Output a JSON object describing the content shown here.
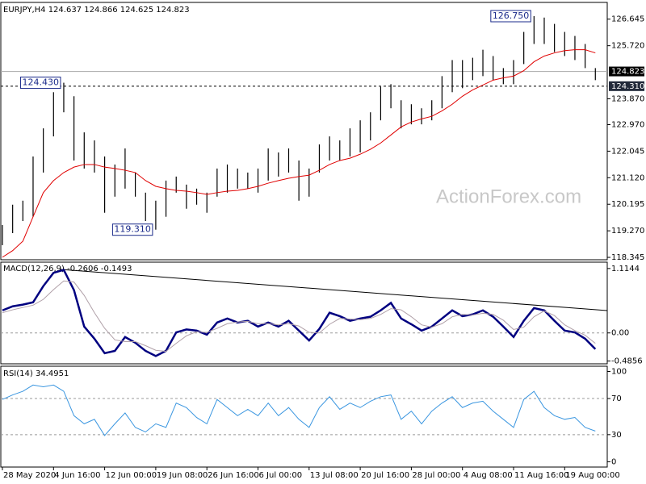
{
  "watermark": "ActionForex.com",
  "chart_data": [
    {
      "type": "range",
      "title": "EURJPY,H4  124.637 124.866 124.625 124.823",
      "bar_color": "#000000",
      "high": [
        119.47,
        120.18,
        120.32,
        121.86,
        122.84,
        124.1,
        124.43,
        123.96,
        122.7,
        122.42,
        121.86,
        121.58,
        122.14,
        121.3,
        120.6,
        120.32,
        121.02,
        121.16,
        120.88,
        120.74,
        120.6,
        121.44,
        121.58,
        121.44,
        121.3,
        121.44,
        122.14,
        122.0,
        122.14,
        121.72,
        121.44,
        122.28,
        122.56,
        122.42,
        122.84,
        123.12,
        123.4,
        124.29,
        124.38,
        123.82,
        123.68,
        123.54,
        123.82,
        124.66,
        125.22,
        125.22,
        125.3,
        125.58,
        125.36,
        124.94,
        125.22,
        126.2,
        126.75,
        126.7,
        126.48,
        126.2,
        126.06,
        125.78,
        124.94
      ],
      "low": [
        118.77,
        119.19,
        119.61,
        119.76,
        121.3,
        122.56,
        123.4,
        121.72,
        121.44,
        121.3,
        119.9,
        120.46,
        120.74,
        120.46,
        119.61,
        119.31,
        119.76,
        120.6,
        120.04,
        120.18,
        119.9,
        120.46,
        120.6,
        120.74,
        120.74,
        120.6,
        121.02,
        121.16,
        121.3,
        120.32,
        120.46,
        121.3,
        121.72,
        121.72,
        121.86,
        122.0,
        122.42,
        123.12,
        123.54,
        122.84,
        122.98,
        122.98,
        123.12,
        123.54,
        124.1,
        124.24,
        124.52,
        124.66,
        124.52,
        124.38,
        124.38,
        125.08,
        125.78,
        125.78,
        125.5,
        125.36,
        125.22,
        124.94,
        124.52
      ],
      "moving_average": {
        "color": "#e00000",
        "values": [
          118.35,
          118.58,
          118.91,
          119.76,
          120.6,
          121.02,
          121.3,
          121.49,
          121.58,
          121.58,
          121.49,
          121.44,
          121.38,
          121.3,
          121.02,
          120.82,
          120.74,
          120.68,
          120.65,
          120.6,
          120.54,
          120.6,
          120.65,
          120.68,
          120.74,
          120.82,
          120.93,
          121.02,
          121.1,
          121.16,
          121.21,
          121.38,
          121.58,
          121.72,
          121.8,
          121.94,
          122.11,
          122.33,
          122.61,
          122.89,
          123.06,
          123.17,
          123.26,
          123.45,
          123.68,
          123.96,
          124.18,
          124.35,
          124.52,
          124.6,
          124.66,
          124.85,
          125.16,
          125.36,
          125.47,
          125.55,
          125.58,
          125.58,
          125.47
        ]
      },
      "ylim": [
        118.29,
        127.2
      ],
      "yticks": [
        126.645,
        {
          "value": 125.72,
          "label": "125.720"
        },
        {
          "value": 123.87,
          "label": "123.870"
        },
        {
          "value": 122.97,
          "label": "122.970"
        },
        122.045,
        {
          "value": 121.12,
          "label": "121.120"
        },
        120.195,
        {
          "value": 119.27,
          "label": "119.270"
        },
        118.345
      ],
      "price_lines": [
        {
          "value": 124.823,
          "line_color": "#a8a8a8",
          "box_color": "#000000",
          "dashed": false
        },
        {
          "value": 124.31,
          "label": "124.310",
          "line_color": "#000000",
          "box_color": "#222a3a",
          "dashed": true
        }
      ],
      "annotations": [
        {
          "value": 126.75,
          "label": "126.750"
        },
        {
          "value": 124.43,
          "label": "124.430"
        },
        {
          "value": 119.31,
          "label": "119.310"
        }
      ]
    },
    {
      "type": "line",
      "title": "MACD(12,26,9) -0.2606 -0.1493",
      "series": [
        {
          "color": "#000080",
          "values": [
            0.39,
            0.46,
            0.49,
            0.53,
            0.81,
            1.04,
            1.09,
            0.74,
            0.11,
            -0.1,
            -0.35,
            -0.31,
            -0.07,
            -0.17,
            -0.31,
            -0.4,
            -0.31,
            0.01,
            0.06,
            0.04,
            -0.03,
            0.18,
            0.25,
            0.18,
            0.21,
            0.11,
            0.18,
            0.11,
            0.21,
            0.04,
            -0.13,
            0.07,
            0.35,
            0.29,
            0.21,
            0.25,
            0.28,
            0.39,
            0.52,
            0.25,
            0.15,
            0.04,
            0.11,
            0.25,
            0.39,
            0.29,
            0.32,
            0.39,
            0.28,
            0.11,
            -0.07,
            0.21,
            0.43,
            0.39,
            0.21,
            0.04,
            0.01,
            -0.1,
            -0.28
          ]
        },
        {
          "color": "#b0a0a8",
          "values": [
            0.35,
            0.4,
            0.44,
            0.48,
            0.58,
            0.75,
            0.9,
            0.88,
            0.65,
            0.35,
            0.08,
            -0.12,
            -0.15,
            -0.15,
            -0.22,
            -0.3,
            -0.32,
            -0.18,
            -0.05,
            0.02,
            0.01,
            0.08,
            0.16,
            0.19,
            0.2,
            0.16,
            0.16,
            0.14,
            0.16,
            0.12,
            0.01,
            0.0,
            0.15,
            0.25,
            0.24,
            0.23,
            0.25,
            0.32,
            0.42,
            0.4,
            0.28,
            0.14,
            0.1,
            0.16,
            0.28,
            0.32,
            0.31,
            0.34,
            0.32,
            0.22,
            0.06,
            0.1,
            0.28,
            0.38,
            0.3,
            0.14,
            0.04,
            -0.04,
            -0.18
          ]
        }
      ],
      "ylim": [
        -0.52,
        1.21
      ],
      "yticks": [
        1.1144,
        {
          "value": 0,
          "label": "0.00"
        },
        -0.4856
      ],
      "levels": [
        0
      ]
    },
    {
      "type": "line",
      "title": "RSI(14) 34.4951",
      "categories": [
        "28 May 2020",
        null,
        null,
        null,
        null,
        "4 Jun 16:00",
        null,
        null,
        null,
        null,
        "12 Jun 00:00",
        null,
        null,
        null,
        null,
        "19 Jun 08:00",
        null,
        null,
        null,
        null,
        "26 Jun 16:00",
        null,
        null,
        null,
        null,
        "6 Jul 00:00",
        null,
        null,
        null,
        null,
        "13 Jul 08:00",
        null,
        null,
        null,
        null,
        "20 Jul 16:00",
        null,
        null,
        null,
        null,
        "28 Jul 00:00",
        null,
        null,
        null,
        null,
        "4 Aug 08:00",
        null,
        null,
        null,
        null,
        "11 Aug 16:00",
        null,
        null,
        null,
        null,
        "19 Aug 00:00",
        null,
        null,
        null
      ],
      "series": [
        {
          "color": "#3a96e0",
          "values": [
            69,
            74,
            78,
            85,
            83,
            85,
            78,
            51,
            42,
            47,
            29,
            42,
            54,
            38,
            33,
            42,
            38,
            65,
            60,
            49,
            42,
            69,
            60,
            51,
            58,
            51,
            65,
            51,
            60,
            47,
            38,
            60,
            72,
            58,
            65,
            60,
            67,
            72,
            74,
            47,
            56,
            42,
            56,
            65,
            72,
            60,
            65,
            67,
            56,
            47,
            38,
            69,
            78,
            60,
            51,
            47,
            49,
            38,
            34
          ]
        }
      ],
      "ylim": [
        -5,
        104
      ],
      "yticks": [
        100,
        70,
        30,
        0
      ],
      "levels": [
        70,
        30
      ]
    }
  ]
}
